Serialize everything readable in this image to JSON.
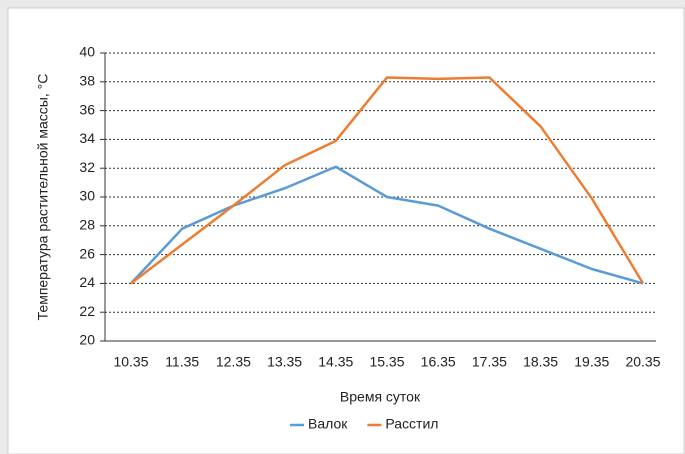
{
  "chart_data": {
    "type": "line",
    "x_label": "Время суток",
    "y_label": "Температура растительной массы, °С",
    "categories": [
      "10.35",
      "11.35",
      "12.35",
      "13.35",
      "14.35",
      "15.35",
      "16.35",
      "17.35",
      "18.35",
      "19.35",
      "20.35"
    ],
    "series": [
      {
        "name": "Валок",
        "color": "#5b9bd5",
        "values": [
          24,
          27.8,
          29.4,
          30.6,
          32.1,
          30,
          29.4,
          27.8,
          26.4,
          25,
          24
        ]
      },
      {
        "name": "Расстил",
        "color": "#ed7d31",
        "values": [
          24,
          26.7,
          29.4,
          32.2,
          33.9,
          38.3,
          38.2,
          38.3,
          34.9,
          29.9,
          24
        ]
      }
    ],
    "ylim": [
      20,
      40
    ],
    "yticks": [
      20,
      22,
      24,
      26,
      28,
      30,
      32,
      34,
      36,
      38,
      40
    ],
    "grid": true,
    "legend": "bottom"
  }
}
